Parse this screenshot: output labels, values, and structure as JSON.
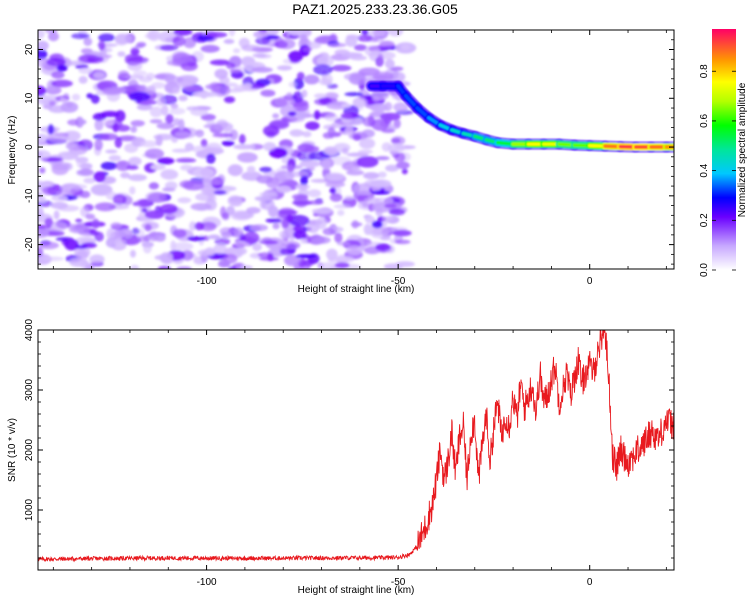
{
  "title": "PAZ1.2025.233.23.36.G05",
  "colors": {
    "snr_line": "#e8191e",
    "axis": "#000000"
  },
  "chart_data": [
    {
      "type": "heatmap",
      "title": "PAZ1.2025.233.23.36.G05",
      "xlabel": "Height of straight line (km)",
      "ylabel": "Frequency (Hz)",
      "xlim": [
        -144,
        22
      ],
      "ylim": [
        -25,
        24
      ],
      "xticks": [
        -100,
        -50,
        0
      ],
      "xtick_labels": [
        "-100",
        "-50",
        "0"
      ],
      "yticks": [
        20,
        10,
        0,
        -10,
        -20
      ],
      "ytick_labels": [
        "20",
        "10",
        "0",
        "-10",
        "-20"
      ],
      "noise_region": {
        "x_range": [
          -144,
          -48
        ],
        "y_range": [
          -25,
          24
        ],
        "typical_amplitude": 0.08
      },
      "signal_ridge": {
        "x": [
          -57,
          -54,
          -50,
          -48,
          -45,
          -42,
          -39,
          -36,
          -33,
          -30,
          -27,
          -24,
          -20,
          -16,
          -12,
          -8,
          -4,
          0,
          4,
          8,
          12,
          16,
          20,
          22
        ],
        "y": [
          12.5,
          12.5,
          12.5,
          10.5,
          8.0,
          6.0,
          4.5,
          3.5,
          2.8,
          2.2,
          1.5,
          0.9,
          0.6,
          0.6,
          0.6,
          0.6,
          0.4,
          0.3,
          0.2,
          0.1,
          0.0,
          0.0,
          0.0,
          0.0
        ],
        "amplitude": [
          0.25,
          0.25,
          0.3,
          0.35,
          0.32,
          0.35,
          0.4,
          0.45,
          0.45,
          0.5,
          0.55,
          0.5,
          0.62,
          0.75,
          0.8,
          0.72,
          0.6,
          0.7,
          0.85,
          0.95,
          0.95,
          0.92,
          0.9,
          0.85
        ]
      },
      "colorbar": {
        "label": "Normalized spectral amplitude",
        "range": [
          0.0,
          0.97
        ],
        "ticks": [
          0.0,
          0.2,
          0.4,
          0.6,
          0.8
        ],
        "tick_labels": [
          "0.0",
          "0.2",
          "0.4",
          "0.6",
          "0.8"
        ]
      }
    },
    {
      "type": "line",
      "xlabel": "Height of straight line (km)",
      "ylabel": "SNR (10 * v/v)",
      "xlim": [
        -144,
        22
      ],
      "ylim": [
        0,
        4000
      ],
      "xticks": [
        -100,
        -50,
        0
      ],
      "xtick_labels": [
        "-100",
        "-50",
        "0"
      ],
      "yticks": [
        1000,
        2000,
        3000,
        4000
      ],
      "ytick_labels": [
        "1000",
        "2000",
        "3000",
        "4000"
      ],
      "series": [
        {
          "name": "SNR",
          "x": [
            -144,
            -130,
            -110,
            -90,
            -70,
            -55,
            -50,
            -47,
            -45,
            -43,
            -41,
            -40,
            -39,
            -38,
            -37,
            -36,
            -35,
            -34,
            -33,
            -32,
            -31,
            -30,
            -29,
            -28,
            -27,
            -26,
            -25,
            -24,
            -23,
            -22,
            -21,
            -20,
            -19,
            -18,
            -17,
            -16,
            -15,
            -14,
            -13,
            -12,
            -11,
            -10,
            -9,
            -8,
            -7,
            -6,
            -5,
            -4,
            -3,
            -2,
            -1,
            0,
            1,
            2,
            3,
            4,
            5,
            6,
            7,
            8,
            10,
            12,
            14,
            16,
            18,
            20,
            22
          ],
          "y": [
            180,
            190,
            200,
            195,
            200,
            205,
            210,
            260,
            400,
            700,
            1100,
            1500,
            2000,
            1500,
            1800,
            2300,
            1600,
            2200,
            2400,
            1500,
            2300,
            2500,
            1500,
            2100,
            2600,
            1800,
            2400,
            2800,
            2200,
            2600,
            2400,
            2900,
            2500,
            3100,
            2700,
            2900,
            3100,
            2600,
            3300,
            2800,
            2900,
            3200,
            3400,
            2800,
            3000,
            3300,
            2900,
            3200,
            3500,
            3100,
            3300,
            3400,
            3300,
            3600,
            3900,
            4000,
            3200,
            1900,
            1700,
            2000,
            1800,
            1950,
            2100,
            2300,
            2200,
            2500,
            2400
          ]
        }
      ]
    }
  ]
}
